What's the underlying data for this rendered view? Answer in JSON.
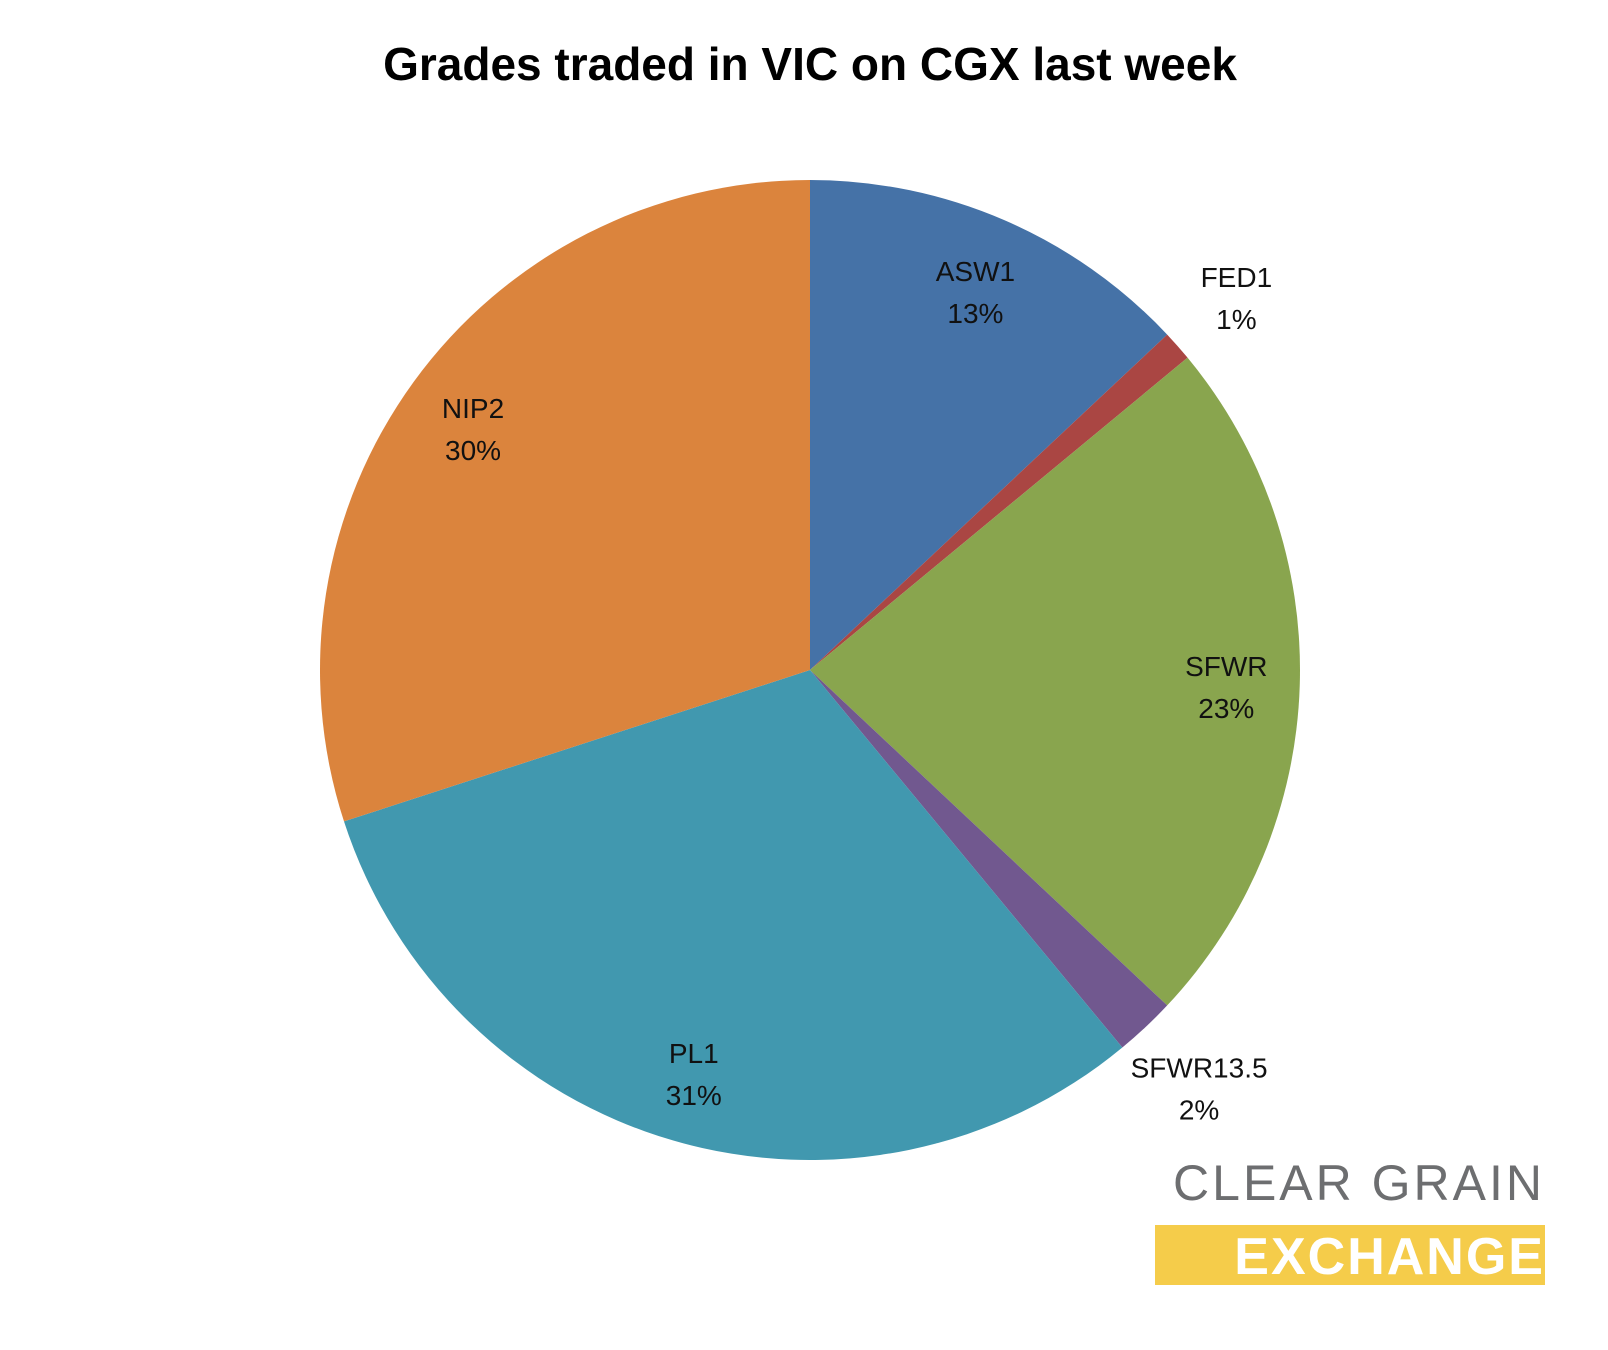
{
  "chart_data": {
    "type": "pie",
    "title": "Grades traded in VIC on CGX last week",
    "categories": [
      "ASW1",
      "FED1",
      "SFWR",
      "SFWR13.5",
      "PL1",
      "NIP2"
    ],
    "values": [
      13,
      1,
      23,
      2,
      31,
      30
    ],
    "value_labels": [
      "13%",
      "1%",
      "23%",
      "2%",
      "31%",
      "30%"
    ],
    "colors": [
      "#4572a7",
      "#aa4643",
      "#89a54e",
      "#71588f",
      "#4198af",
      "#db843d"
    ],
    "logo": [
      "CLEAR GRAIN",
      "EXCHANGE"
    ]
  }
}
